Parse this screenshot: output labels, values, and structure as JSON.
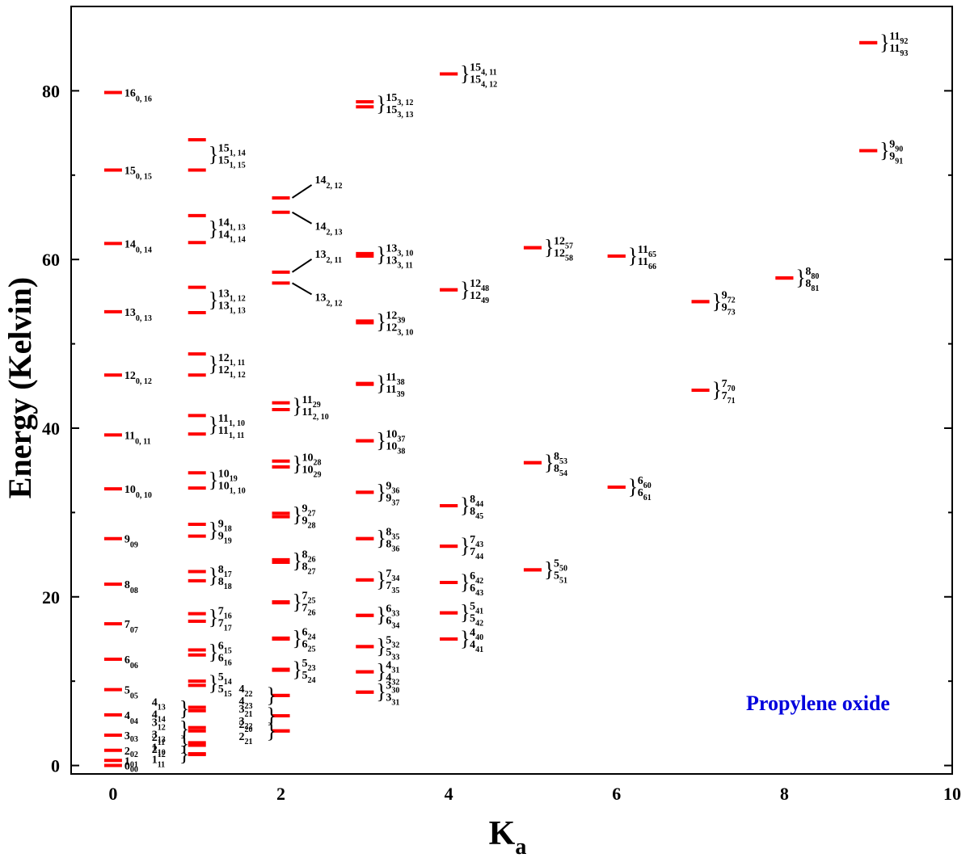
{
  "chart_data": {
    "type": "scatter",
    "title": "",
    "annotation": "Propylene oxide",
    "xlabel": "K",
    "xlabel_sub": "a",
    "ylabel": "Energy (Kelvin)",
    "xlim": [
      -0.5,
      10
    ],
    "ylim": [
      -1,
      90
    ],
    "x_ticks": [
      0,
      2,
      4,
      6,
      8,
      10
    ],
    "y_ticks": [
      0,
      20,
      40,
      60,
      80
    ],
    "marker_color": "#ff0000",
    "annotation_color": "#0000dd",
    "grid": false,
    "levels": [
      {
        "ka": 0,
        "energy": 0.0,
        "label": [
          "0",
          "00"
        ]
      },
      {
        "ka": 0,
        "energy": 0.6,
        "label": [
          "1",
          "01"
        ]
      },
      {
        "ka": 0,
        "energy": 1.8,
        "label": [
          "2",
          "02"
        ]
      },
      {
        "ka": 0,
        "energy": 3.6,
        "label": [
          "3",
          "03"
        ]
      },
      {
        "ka": 0,
        "energy": 6.0,
        "label": [
          "4",
          "04"
        ]
      },
      {
        "ka": 0,
        "energy": 9.0,
        "label": [
          "5",
          "05"
        ]
      },
      {
        "ka": 0,
        "energy": 12.6,
        "label": [
          "6",
          "06"
        ]
      },
      {
        "ka": 0,
        "energy": 16.8,
        "label": [
          "7",
          "07"
        ]
      },
      {
        "ka": 0,
        "energy": 21.5,
        "label": [
          "8",
          "08"
        ]
      },
      {
        "ka": 0,
        "energy": 26.9,
        "label": [
          "9",
          "09"
        ]
      },
      {
        "ka": 0,
        "energy": 32.8,
        "label": [
          "10",
          "0, 10"
        ]
      },
      {
        "ka": 0,
        "energy": 39.2,
        "label": [
          "11",
          "0, 11"
        ]
      },
      {
        "ka": 0,
        "energy": 46.3,
        "label": [
          "12",
          "0, 12"
        ]
      },
      {
        "ka": 0,
        "energy": 53.8,
        "label": [
          "13",
          "0, 13"
        ]
      },
      {
        "ka": 0,
        "energy": 61.9,
        "label": [
          "14",
          "0, 14"
        ]
      },
      {
        "ka": 0,
        "energy": 70.6,
        "label": [
          "15",
          "0, 15"
        ]
      },
      {
        "ka": 0,
        "energy": 79.8,
        "label": [
          "16",
          "0, 16"
        ]
      },
      {
        "ka": 1,
        "energy": 1.3,
        "label": [
          "1",
          "11"
        ]
      },
      {
        "ka": 1,
        "energy": 1.4,
        "label": [
          "1",
          "10"
        ]
      },
      {
        "ka": 1,
        "energy": 2.4,
        "label": [
          "2",
          "12"
        ]
      },
      {
        "ka": 1,
        "energy": 2.7,
        "label": [
          "2",
          "11"
        ]
      },
      {
        "ka": 1,
        "energy": 4.1,
        "label": [
          "3",
          "13"
        ]
      },
      {
        "ka": 1,
        "energy": 4.5,
        "label": [
          "3",
          "12"
        ]
      },
      {
        "ka": 1,
        "energy": 6.5,
        "label": [
          "4",
          "14"
        ]
      },
      {
        "ka": 1,
        "energy": 6.9,
        "label": [
          "4",
          "13"
        ]
      },
      {
        "ka": 1,
        "energy": 9.5,
        "label": [
          "5",
          "15"
        ]
      },
      {
        "ka": 1,
        "energy": 10.0,
        "label": [
          "5",
          "14"
        ]
      },
      {
        "ka": 1,
        "energy": 13.1,
        "label": [
          "6",
          "16"
        ]
      },
      {
        "ka": 1,
        "energy": 13.7,
        "label": [
          "6",
          "15"
        ]
      },
      {
        "ka": 1,
        "energy": 17.1,
        "label": [
          "7",
          "17"
        ]
      },
      {
        "ka": 1,
        "energy": 18.0,
        "label": [
          "7",
          "16"
        ]
      },
      {
        "ka": 1,
        "energy": 21.9,
        "label": [
          "8",
          "18"
        ]
      },
      {
        "ka": 1,
        "energy": 23.0,
        "label": [
          "8",
          "17"
        ]
      },
      {
        "ka": 1,
        "energy": 27.2,
        "label": [
          "9",
          "19"
        ]
      },
      {
        "ka": 1,
        "energy": 28.6,
        "label": [
          "9",
          "18"
        ]
      },
      {
        "ka": 1,
        "energy": 32.9,
        "label": [
          "10",
          "1, 10"
        ]
      },
      {
        "ka": 1,
        "energy": 34.7,
        "label": [
          "10",
          "19"
        ]
      },
      {
        "ka": 1,
        "energy": 39.3,
        "label": [
          "11",
          "1, 11"
        ]
      },
      {
        "ka": 1,
        "energy": 41.5,
        "label": [
          "11",
          "1, 10"
        ]
      },
      {
        "ka": 1,
        "energy": 46.3,
        "label": [
          "12",
          "1, 12"
        ]
      },
      {
        "ka": 1,
        "energy": 48.8,
        "label": [
          "12",
          "1, 11"
        ]
      },
      {
        "ka": 1,
        "energy": 53.7,
        "label": [
          "13",
          "1, 13"
        ]
      },
      {
        "ka": 1,
        "energy": 56.7,
        "label": [
          "13",
          "1, 12"
        ]
      },
      {
        "ka": 1,
        "energy": 62.0,
        "label": [
          "14",
          "1, 14"
        ]
      },
      {
        "ka": 1,
        "energy": 65.2,
        "label": [
          "14",
          "1, 13"
        ]
      },
      {
        "ka": 1,
        "energy": 70.6,
        "label": [
          "15",
          "1, 15"
        ]
      },
      {
        "ka": 1,
        "energy": 74.2,
        "label": [
          "15",
          "1, 14"
        ]
      },
      {
        "ka": 2,
        "energy": 4.1,
        "label": [
          "2",
          "21"
        ]
      },
      {
        "ka": 2,
        "energy": 4.1,
        "label": [
          "2",
          "20"
        ]
      },
      {
        "ka": 2,
        "energy": 5.9,
        "label": [
          "3",
          "22"
        ]
      },
      {
        "ka": 2,
        "energy": 5.9,
        "label": [
          "3",
          "21"
        ]
      },
      {
        "ka": 2,
        "energy": 8.3,
        "label": [
          "4",
          "23"
        ]
      },
      {
        "ka": 2,
        "energy": 8.3,
        "label": [
          "4",
          "22"
        ]
      },
      {
        "ka": 2,
        "energy": 11.3,
        "label": [
          "5",
          "24"
        ]
      },
      {
        "ka": 2,
        "energy": 11.4,
        "label": [
          "5",
          "23"
        ]
      },
      {
        "ka": 2,
        "energy": 15.0,
        "label": [
          "6",
          "25"
        ]
      },
      {
        "ka": 2,
        "energy": 15.1,
        "label": [
          "6",
          "24"
        ]
      },
      {
        "ka": 2,
        "energy": 19.3,
        "label": [
          "7",
          "26"
        ]
      },
      {
        "ka": 2,
        "energy": 19.4,
        "label": [
          "7",
          "25"
        ]
      },
      {
        "ka": 2,
        "energy": 24.1,
        "label": [
          "8",
          "27"
        ]
      },
      {
        "ka": 2,
        "energy": 24.4,
        "label": [
          "8",
          "26"
        ]
      },
      {
        "ka": 2,
        "energy": 29.5,
        "label": [
          "9",
          "28"
        ]
      },
      {
        "ka": 2,
        "energy": 29.9,
        "label": [
          "9",
          "27"
        ]
      },
      {
        "ka": 2,
        "energy": 35.4,
        "label": [
          "10",
          "29"
        ]
      },
      {
        "ka": 2,
        "energy": 36.1,
        "label": [
          "10",
          "28"
        ]
      },
      {
        "ka": 2,
        "energy": 42.2,
        "label": [
          "11",
          "2, 10"
        ]
      },
      {
        "ka": 2,
        "energy": 43.0,
        "label": [
          "11",
          "29"
        ]
      },
      {
        "ka": 2,
        "energy": 57.2,
        "label": [
          "13",
          "2, 12"
        ]
      },
      {
        "ka": 2,
        "energy": 58.5,
        "label": [
          "13",
          "2, 11"
        ]
      },
      {
        "ka": 2,
        "energy": 65.6,
        "label": [
          "14",
          "2, 13"
        ]
      },
      {
        "ka": 2,
        "energy": 67.3,
        "label": [
          "14",
          "2, 12"
        ]
      },
      {
        "ka": 3,
        "energy": 8.7,
        "label": [
          "3",
          "31"
        ]
      },
      {
        "ka": 3,
        "energy": 8.7,
        "label": [
          "3",
          "30"
        ]
      },
      {
        "ka": 3,
        "energy": 11.1,
        "label": [
          "4",
          "32"
        ]
      },
      {
        "ka": 3,
        "energy": 11.1,
        "label": [
          "4",
          "31"
        ]
      },
      {
        "ka": 3,
        "energy": 14.1,
        "label": [
          "5",
          "33"
        ]
      },
      {
        "ka": 3,
        "energy": 14.1,
        "label": [
          "5",
          "32"
        ]
      },
      {
        "ka": 3,
        "energy": 17.8,
        "label": [
          "6",
          "34"
        ]
      },
      {
        "ka": 3,
        "energy": 17.8,
        "label": [
          "6",
          "33"
        ]
      },
      {
        "ka": 3,
        "energy": 22.0,
        "label": [
          "7",
          "35"
        ]
      },
      {
        "ka": 3,
        "energy": 22.0,
        "label": [
          "7",
          "34"
        ]
      },
      {
        "ka": 3,
        "energy": 26.9,
        "label": [
          "8",
          "36"
        ]
      },
      {
        "ka": 3,
        "energy": 26.9,
        "label": [
          "8",
          "35"
        ]
      },
      {
        "ka": 3,
        "energy": 32.4,
        "label": [
          "9",
          "37"
        ]
      },
      {
        "ka": 3,
        "energy": 32.4,
        "label": [
          "9",
          "36"
        ]
      },
      {
        "ka": 3,
        "energy": 38.5,
        "label": [
          "10",
          "38"
        ]
      },
      {
        "ka": 3,
        "energy": 38.5,
        "label": [
          "10",
          "37"
        ]
      },
      {
        "ka": 3,
        "energy": 45.2,
        "label": [
          "11",
          "39"
        ]
      },
      {
        "ka": 3,
        "energy": 45.3,
        "label": [
          "11",
          "38"
        ]
      },
      {
        "ka": 3,
        "energy": 52.5,
        "label": [
          "12",
          "3, 10"
        ]
      },
      {
        "ka": 3,
        "energy": 52.7,
        "label": [
          "12",
          "39"
        ]
      },
      {
        "ka": 3,
        "energy": 60.4,
        "label": [
          "13",
          "3, 11"
        ]
      },
      {
        "ka": 3,
        "energy": 60.7,
        "label": [
          "13",
          "3, 10"
        ]
      },
      {
        "ka": 3,
        "energy": 78.1,
        "label": [
          "15",
          "3, 13"
        ]
      },
      {
        "ka": 3,
        "energy": 78.7,
        "label": [
          "15",
          "3, 12"
        ]
      },
      {
        "ka": 4,
        "energy": 15.0,
        "label": [
          "4",
          "41"
        ]
      },
      {
        "ka": 4,
        "energy": 15.0,
        "label": [
          "4",
          "40"
        ]
      },
      {
        "ka": 4,
        "energy": 18.1,
        "label": [
          "5",
          "42"
        ]
      },
      {
        "ka": 4,
        "energy": 18.1,
        "label": [
          "5",
          "41"
        ]
      },
      {
        "ka": 4,
        "energy": 21.7,
        "label": [
          "6",
          "43"
        ]
      },
      {
        "ka": 4,
        "energy": 21.7,
        "label": [
          "6",
          "42"
        ]
      },
      {
        "ka": 4,
        "energy": 26.0,
        "label": [
          "7",
          "44"
        ]
      },
      {
        "ka": 4,
        "energy": 26.0,
        "label": [
          "7",
          "43"
        ]
      },
      {
        "ka": 4,
        "energy": 30.8,
        "label": [
          "8",
          "45"
        ]
      },
      {
        "ka": 4,
        "energy": 30.8,
        "label": [
          "8",
          "44"
        ]
      },
      {
        "ka": 4,
        "energy": 56.4,
        "label": [
          "12",
          "49"
        ]
      },
      {
        "ka": 4,
        "energy": 56.4,
        "label": [
          "12",
          "48"
        ]
      },
      {
        "ka": 4,
        "energy": 82.0,
        "label": [
          "15",
          "4, 12"
        ]
      },
      {
        "ka": 4,
        "energy": 82.0,
        "label": [
          "15",
          "4, 11"
        ]
      },
      {
        "ka": 5,
        "energy": 23.2,
        "label": [
          "5",
          "51"
        ]
      },
      {
        "ka": 5,
        "energy": 23.2,
        "label": [
          "5",
          "50"
        ]
      },
      {
        "ka": 5,
        "energy": 35.9,
        "label": [
          "8",
          "54"
        ]
      },
      {
        "ka": 5,
        "energy": 35.9,
        "label": [
          "8",
          "53"
        ]
      },
      {
        "ka": 5,
        "energy": 61.4,
        "label": [
          "12",
          "58"
        ]
      },
      {
        "ka": 5,
        "energy": 61.4,
        "label": [
          "12",
          "57"
        ]
      },
      {
        "ka": 6,
        "energy": 33.0,
        "label": [
          "6",
          "61"
        ]
      },
      {
        "ka": 6,
        "energy": 33.0,
        "label": [
          "6",
          "60"
        ]
      },
      {
        "ka": 6,
        "energy": 60.4,
        "label": [
          "11",
          "66"
        ]
      },
      {
        "ka": 6,
        "energy": 60.4,
        "label": [
          "11",
          "65"
        ]
      },
      {
        "ka": 7,
        "energy": 44.5,
        "label": [
          "7",
          "71"
        ]
      },
      {
        "ka": 7,
        "energy": 44.5,
        "label": [
          "7",
          "70"
        ]
      },
      {
        "ka": 7,
        "energy": 55.0,
        "label": [
          "9",
          "73"
        ]
      },
      {
        "ka": 7,
        "energy": 55.0,
        "label": [
          "9",
          "72"
        ]
      },
      {
        "ka": 8,
        "energy": 57.8,
        "label": [
          "8",
          "81"
        ]
      },
      {
        "ka": 8,
        "energy": 57.8,
        "label": [
          "8",
          "80"
        ]
      },
      {
        "ka": 9,
        "energy": 72.9,
        "label": [
          "9",
          "91"
        ]
      },
      {
        "ka": 9,
        "energy": 72.9,
        "label": [
          "9",
          "90"
        ]
      },
      {
        "ka": 9,
        "energy": 85.7,
        "label": [
          "11",
          "93"
        ]
      },
      {
        "ka": 9,
        "energy": 85.7,
        "label": [
          "11",
          "92"
        ]
      }
    ]
  }
}
